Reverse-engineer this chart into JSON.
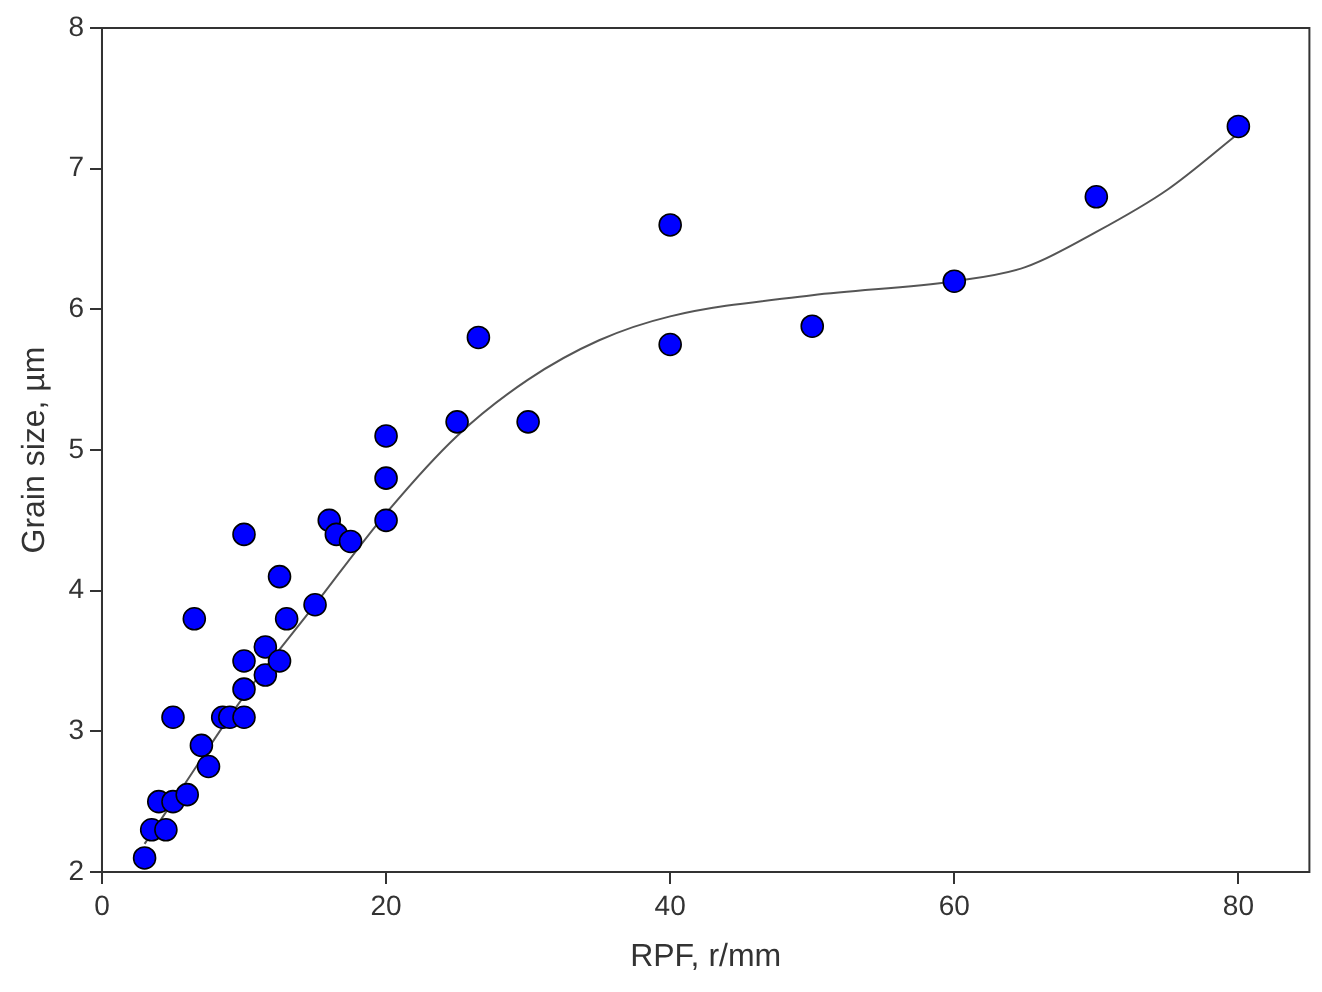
{
  "chart_data": {
    "type": "scatter",
    "xlabel": "RPF, r/mm",
    "ylabel": "Grain size, µm",
    "xlim": [
      0,
      85
    ],
    "ylim": [
      2,
      8
    ],
    "xticks": [
      0,
      20,
      40,
      60,
      80
    ],
    "yticks": [
      2,
      3,
      4,
      5,
      6,
      7,
      8
    ],
    "grid": false,
    "legend": false,
    "marker": "circle",
    "series": [
      {
        "type": "line",
        "color": "#555555",
        "line_style": "solid",
        "marker": "none",
        "x": [
          3,
          5,
          10,
          15,
          20,
          25,
          30,
          35,
          40,
          50,
          60,
          65,
          70,
          75,
          80
        ],
        "values": [
          2.2,
          2.5,
          3.25,
          3.9,
          4.55,
          5.1,
          5.5,
          5.78,
          5.95,
          6.1,
          6.2,
          6.3,
          6.55,
          6.85,
          7.25
        ]
      },
      {
        "color": "#0000ff",
        "x": [
          3,
          3.5,
          4,
          4.5,
          5,
          5,
          6,
          6.5,
          7,
          7.5,
          8.5,
          9,
          10,
          10,
          10,
          10,
          11.5,
          11.5,
          12.5,
          12.5,
          13,
          15,
          16,
          16.5,
          17.5,
          20,
          20,
          20,
          25,
          26.5,
          30,
          40,
          40,
          50,
          60,
          70,
          80
        ],
        "values": [
          2.1,
          2.3,
          2.5,
          2.3,
          2.5,
          3.1,
          2.55,
          3.8,
          2.9,
          2.75,
          3.1,
          3.1,
          3.3,
          3.5,
          3.1,
          4.4,
          3.6,
          3.4,
          3.5,
          4.1,
          3.8,
          3.9,
          4.5,
          4.4,
          4.35,
          4.5,
          4.8,
          5.1,
          5.2,
          5.8,
          5.2,
          6.6,
          5.75,
          5.88,
          6.2,
          6.8,
          7.3
        ]
      }
    ]
  }
}
